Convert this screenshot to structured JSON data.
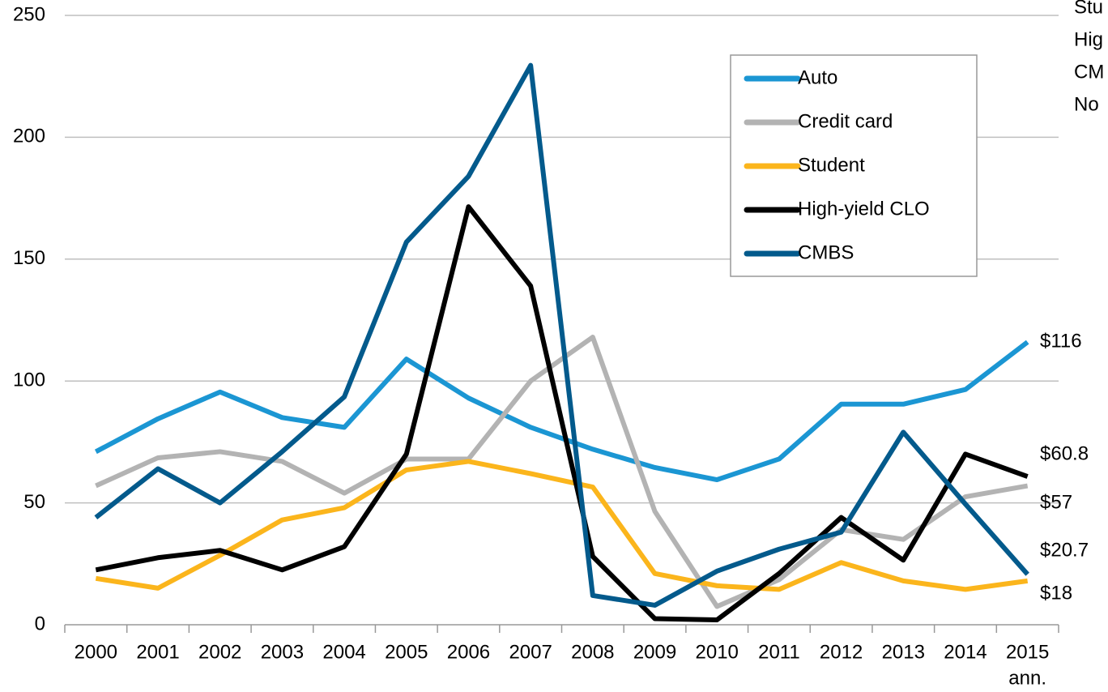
{
  "chart_data": {
    "type": "line",
    "categories": [
      "2000",
      "2001",
      "2002",
      "2003",
      "2004",
      "2005",
      "2006",
      "2007",
      "2008",
      "2009",
      "2010",
      "2011",
      "2012",
      "2013",
      "2014",
      "2015"
    ],
    "x_annotation": "ann.",
    "ylim": [
      0,
      250
    ],
    "yticks": [
      0,
      50,
      100,
      150,
      200,
      250
    ],
    "grid": true,
    "legend": "upper right",
    "series": [
      {
        "name": "Auto",
        "color": "#1b96d3",
        "values": [
          71,
          84.5,
          95.5,
          85,
          81,
          109,
          93,
          81,
          72,
          64.5,
          59.5,
          68,
          90.5,
          90.5,
          96.5,
          116
        ],
        "end_label": "$116"
      },
      {
        "name": "Credit card",
        "color": "#b3b3b3",
        "values": [
          57,
          68.5,
          71,
          67,
          54,
          68,
          68,
          100,
          118,
          46.5,
          7.5,
          18.5,
          39,
          35,
          52.5,
          57
        ],
        "end_label": "$57"
      },
      {
        "name": "Student",
        "color": "#fbb51c",
        "values": [
          19,
          15,
          28.5,
          43,
          48,
          63.5,
          67,
          62,
          56.5,
          21,
          16,
          14.5,
          25.5,
          18,
          14.5,
          18
        ],
        "end_label": "$18"
      },
      {
        "name": "High-yield CLO",
        "color": "#000000",
        "values": [
          22.5,
          27.5,
          30.5,
          22.5,
          32,
          70,
          171.5,
          139,
          28,
          2.5,
          2,
          21,
          44,
          26.5,
          70,
          60.8
        ],
        "end_label": "$60.8"
      },
      {
        "name": "CMBS",
        "color": "#035a8c",
        "values": [
          44,
          64,
          50,
          71,
          93.5,
          157,
          184,
          229.5,
          12,
          8,
          22,
          31,
          38,
          79,
          49.5,
          20.7
        ],
        "end_label": "$20.7"
      }
    ],
    "side_legend": [
      "Stu",
      "Hig",
      "CM",
      "No"
    ]
  }
}
